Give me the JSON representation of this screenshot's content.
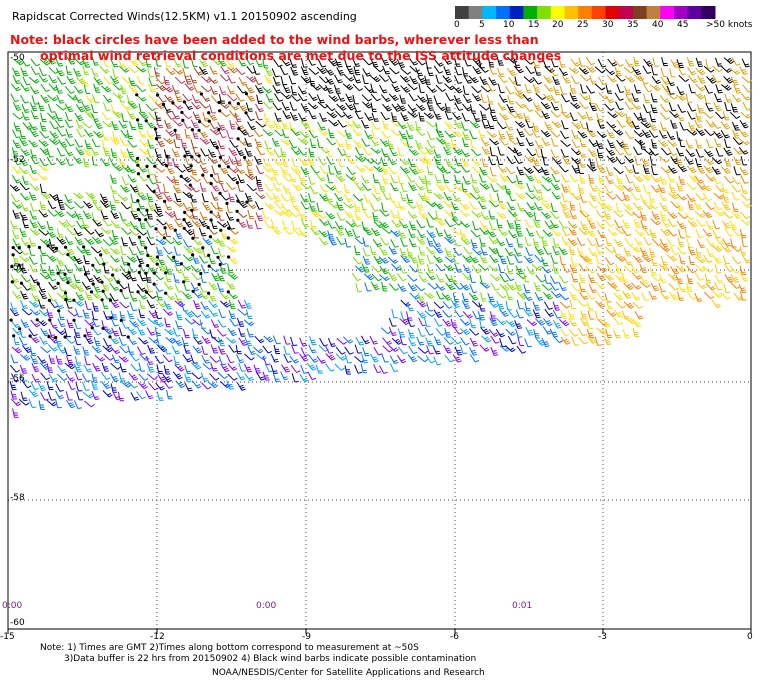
{
  "header": {
    "title": "Rapidscat Corrected Winds(12.5KM) v1.1 20150902 ascending"
  },
  "note": {
    "line1": "Note: black circles have been added to the wind barbs, wherever less than",
    "line2": "optimal wind retrieval conditions are met due to the ISS attitude changes"
  },
  "legend": {
    "labels": [
      "0",
      "5",
      "10",
      "15",
      "20",
      "25",
      "30",
      "35",
      "40",
      "45",
      ">50 knots"
    ],
    "colors": [
      "#404040",
      "#808080",
      "#00b8ff",
      "#0070ff",
      "#0020c0",
      "#00b000",
      "#80e000",
      "#ffff00",
      "#ffc000",
      "#ff8000",
      "#ff4000",
      "#e00000",
      "#c00050",
      "#804020",
      "#c08040",
      "#ff00ff",
      "#a000c0",
      "#6000a0",
      "#300060"
    ]
  },
  "map": {
    "lon_labels": [
      "-15",
      "-12",
      "-9",
      "-6",
      "-3",
      "0"
    ],
    "lat_labels": [
      "-50",
      "-52",
      "-54",
      "-56",
      "-58",
      "-60"
    ],
    "time_labels": [
      "0:00",
      "0:00",
      "0:01"
    ]
  },
  "footer": {
    "line1": "Note: 1) Times are GMT 2)Times along bottom correspond to measurement at ~50S",
    "line2": "3)Data buffer is 22 hrs from 20150902 4) Black wind barbs indicate possible contamination",
    "line3": "NOAA/NESDIS/Center for Satellite Applications and Research"
  }
}
